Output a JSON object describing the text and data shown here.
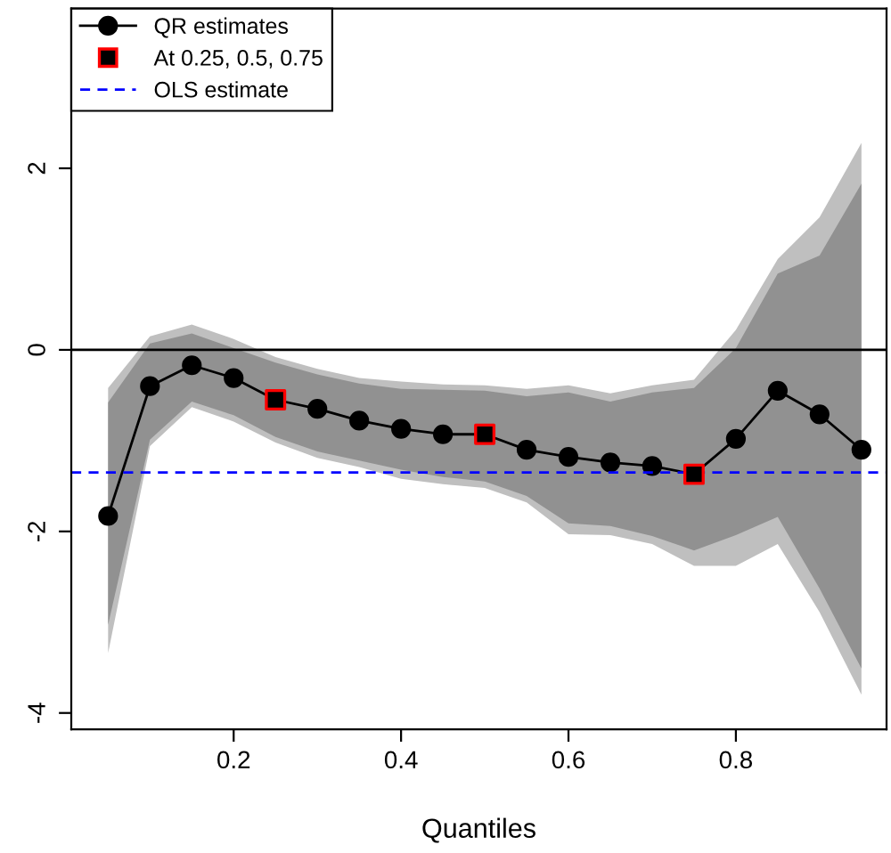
{
  "chart_data": {
    "type": "line",
    "xlabel": "Quantiles",
    "x": [
      0.05,
      0.1,
      0.15,
      0.2,
      0.25,
      0.3,
      0.35,
      0.4,
      0.45,
      0.5,
      0.55,
      0.6,
      0.65,
      0.7,
      0.75,
      0.8,
      0.85,
      0.9,
      0.95
    ],
    "xlim": [
      0.006,
      0.98
    ],
    "ylim": [
      -4.18,
      3.76
    ],
    "xticks": [
      0.2,
      0.4,
      0.6,
      0.8
    ],
    "yticks": [
      -4,
      -2,
      0,
      2
    ],
    "series": [
      {
        "color": "#bfbfbf",
        "values": [
          null,
          null,
          null,
          null,
          null,
          null,
          null,
          null,
          null,
          null,
          null,
          null,
          null,
          null,
          null,
          null,
          null,
          null,
          null
        ],
        "lower": [
          -3.34,
          -1.06,
          -0.63,
          -0.79,
          -1.02,
          -1.19,
          -1.29,
          -1.42,
          -1.48,
          -1.52,
          -1.68,
          -2.03,
          -2.04,
          -2.14,
          -2.38,
          -2.38,
          -2.14,
          -2.89,
          -3.8
        ],
        "upper": [
          -0.42,
          0.15,
          0.28,
          0.12,
          -0.08,
          -0.21,
          -0.31,
          -0.35,
          -0.38,
          -0.39,
          -0.43,
          -0.39,
          -0.48,
          -0.39,
          -0.33,
          0.22,
          1.0,
          1.46,
          2.28
        ]
      },
      {
        "color": "#919191",
        "values": [
          null,
          null,
          null,
          null,
          null,
          null,
          null,
          null,
          null,
          null,
          null,
          null,
          null,
          null,
          null,
          null,
          null,
          null,
          null
        ],
        "lower": [
          -3.03,
          -0.99,
          -0.57,
          -0.72,
          -0.96,
          -1.12,
          -1.22,
          -1.32,
          -1.4,
          -1.45,
          -1.61,
          -1.91,
          -1.94,
          -2.05,
          -2.21,
          -2.04,
          -1.84,
          -2.63,
          -3.51
        ],
        "upper": [
          -0.58,
          0.07,
          0.18,
          0.02,
          -0.14,
          -0.27,
          -0.37,
          -0.43,
          -0.44,
          -0.45,
          -0.51,
          -0.47,
          -0.57,
          -0.47,
          -0.42,
          0.02,
          0.84,
          1.04,
          1.83
        ]
      },
      {
        "type": "line",
        "name": "QR estimates",
        "color": "#000000",
        "marker": "circle",
        "values": [
          -1.83,
          -0.4,
          -0.17,
          -0.31,
          -0.55,
          -0.65,
          -0.78,
          -0.87,
          -0.93,
          -0.93,
          -1.1,
          -1.18,
          -1.24,
          -1.28,
          -1.37,
          -0.98,
          -0.45,
          -0.71,
          -1.1
        ]
      },
      {
        "type": "scatter",
        "name": "At 0.25, 0.5, 0.75",
        "color": "#ff0000",
        "marker": "square",
        "x": [
          0.25,
          0.5,
          0.75
        ],
        "values": [
          -0.55,
          -0.93,
          -1.37
        ]
      }
    ],
    "ref_lines": [
      {
        "axis": "y",
        "value": 0,
        "color": "#000000",
        "line_style": "solid"
      },
      {
        "axis": "y",
        "value": -1.35,
        "label": "OLS estimate",
        "color": "#0000ff",
        "line_style": "dashed"
      }
    ],
    "legend": "top left"
  }
}
